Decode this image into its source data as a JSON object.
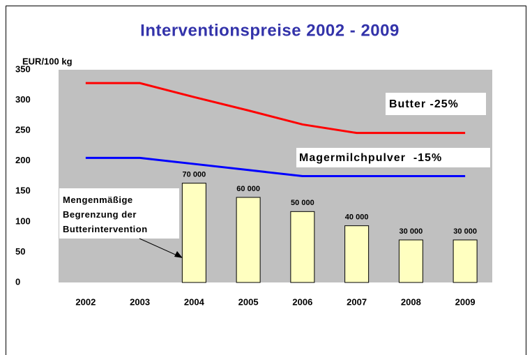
{
  "chart_data": {
    "type": "line",
    "title": "Interventionspreise 2002 - 2009",
    "y_axis_label": "EUR/100 kg",
    "annotation": "Mengenmäßige Begrenzung der Butterintervention",
    "categories": [
      "2002",
      "2003",
      "2004",
      "2005",
      "2006",
      "2007",
      "2008",
      "2009"
    ],
    "series": [
      {
        "name": "Butter -25%",
        "color": "#ff0000",
        "values": [
          328,
          328,
          305,
          283,
          260,
          246,
          246,
          246
        ]
      },
      {
        "name": "Magermilchpulver  -15%",
        "color": "#0000ff",
        "values": [
          205,
          205,
          195,
          185,
          175,
          175,
          175,
          175
        ]
      },
      {
        "type": "bar",
        "axis": "y2",
        "color": "#ffffc0",
        "values": [
          null,
          null,
          70000,
          60000,
          50000,
          40000,
          30000,
          30000
        ],
        "value_labels": [
          null,
          null,
          "70 000",
          "60 000",
          "50 000",
          "40 000",
          "30 000",
          "30 000"
        ]
      }
    ],
    "ylim": [
      0,
      350
    ],
    "yticks": [
      0,
      50,
      100,
      150,
      200,
      250,
      300,
      350
    ],
    "y2lim": [
      0,
      150000
    ],
    "plot_background": "#c0c0c0"
  }
}
